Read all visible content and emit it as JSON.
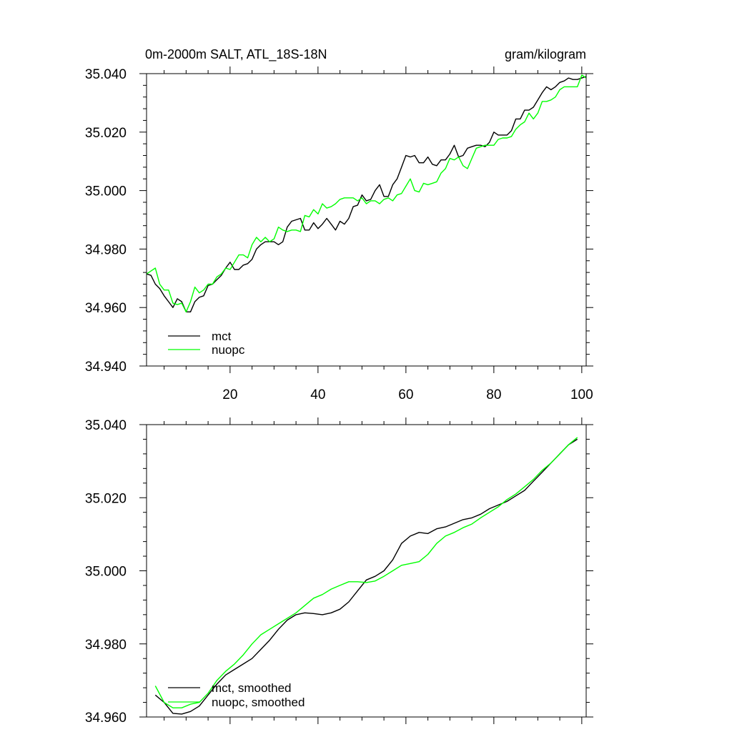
{
  "chart_data": [
    {
      "type": "line",
      "title_left": "0m-2000m SALT, ATL_18S-18N",
      "title_right": "gram/kilogram",
      "xlim": [
        1,
        101
      ],
      "ylim": [
        34.94,
        35.04
      ],
      "xticks": [
        20,
        40,
        60,
        80,
        100
      ],
      "xtick_labels": [
        "20",
        "40",
        "60",
        "80",
        "100"
      ],
      "yticks": [
        34.94,
        34.96,
        34.98,
        35.0,
        35.02,
        35.04
      ],
      "ytick_labels": [
        "34.940",
        "34.960",
        "34.980",
        "35.000",
        "35.020",
        "35.040"
      ],
      "legend_position": "bottom-left",
      "series": [
        {
          "name": "mct",
          "color": "#000000",
          "x": [
            1,
            2,
            3,
            4,
            5,
            6,
            7,
            8,
            9,
            10,
            11,
            12,
            13,
            14,
            15,
            16,
            17,
            18,
            19,
            20,
            21,
            22,
            23,
            24,
            25,
            26,
            27,
            28,
            29,
            30,
            31,
            32,
            33,
            34,
            35,
            36,
            37,
            38,
            39,
            40,
            41,
            42,
            43,
            44,
            45,
            46,
            47,
            48,
            49,
            50,
            51,
            52,
            53,
            54,
            55,
            56,
            57,
            58,
            59,
            60,
            61,
            62,
            63,
            64,
            65,
            66,
            67,
            68,
            69,
            70,
            71,
            72,
            73,
            74,
            75,
            76,
            77,
            78,
            79,
            80,
            81,
            82,
            83,
            84,
            85,
            86,
            87,
            88,
            89,
            90,
            91,
            92,
            93,
            94,
            95,
            96,
            97,
            98,
            99,
            100,
            101
          ],
          "values": [
            34.9715,
            34.971,
            34.968,
            34.9665,
            34.964,
            34.962,
            34.96,
            34.963,
            34.962,
            34.9585,
            34.9585,
            34.962,
            34.9635,
            34.964,
            34.9675,
            34.968,
            34.9695,
            34.971,
            34.9735,
            34.9755,
            34.973,
            34.973,
            34.9745,
            34.975,
            34.9765,
            34.98,
            34.9815,
            34.9825,
            34.9825,
            34.9825,
            34.9815,
            34.9825,
            34.9875,
            34.9895,
            34.99,
            34.9905,
            34.9865,
            34.9865,
            34.989,
            34.987,
            34.9885,
            34.9905,
            34.9885,
            34.9865,
            34.9895,
            34.9885,
            34.9905,
            34.9945,
            34.995,
            34.9985,
            34.9965,
            34.997,
            35.0,
            35.002,
            34.998,
            34.998,
            35.002,
            35.004,
            35.008,
            35.012,
            35.0115,
            35.012,
            35.0095,
            35.0095,
            35.0115,
            35.009,
            35.0085,
            35.0105,
            35.0105,
            35.0125,
            35.0155,
            35.0115,
            35.012,
            35.0145,
            35.015,
            35.0155,
            35.0155,
            35.015,
            35.0165,
            35.02,
            35.019,
            35.019,
            35.019,
            35.0205,
            35.0245,
            35.0245,
            35.0275,
            35.0275,
            35.0285,
            35.031,
            35.0335,
            35.0355,
            35.0345,
            35.0355,
            35.037,
            35.0375,
            35.0385,
            35.038,
            35.038,
            35.0385,
            35.039
          ]
        },
        {
          "name": "nuopc",
          "color": "#00ff00",
          "x": [
            1,
            2,
            3,
            4,
            5,
            6,
            7,
            8,
            9,
            10,
            11,
            12,
            13,
            14,
            15,
            16,
            17,
            18,
            19,
            20,
            21,
            22,
            23,
            24,
            25,
            26,
            27,
            28,
            29,
            30,
            31,
            32,
            33,
            34,
            35,
            36,
            37,
            38,
            39,
            40,
            41,
            42,
            43,
            44,
            45,
            46,
            47,
            48,
            49,
            50,
            51,
            52,
            53,
            54,
            55,
            56,
            57,
            58,
            59,
            60,
            61,
            62,
            63,
            64,
            65,
            66,
            67,
            68,
            69,
            70,
            71,
            72,
            73,
            74,
            75,
            76,
            77,
            78,
            79,
            80,
            81,
            82,
            83,
            84,
            85,
            86,
            87,
            88,
            89,
            90,
            91,
            92,
            93,
            94,
            95,
            96,
            97,
            98,
            99,
            100,
            101
          ],
          "values": [
            34.9715,
            34.9725,
            34.9735,
            34.968,
            34.966,
            34.966,
            34.9615,
            34.961,
            34.9615,
            34.9585,
            34.962,
            34.967,
            34.965,
            34.966,
            34.968,
            34.968,
            34.9705,
            34.9715,
            34.9735,
            34.973,
            34.9755,
            34.978,
            34.978,
            34.977,
            34.9815,
            34.984,
            34.9825,
            34.984,
            34.9825,
            34.9835,
            34.9875,
            34.9865,
            34.986,
            34.9865,
            34.9865,
            34.986,
            34.9915,
            34.991,
            34.9935,
            34.992,
            34.9955,
            34.994,
            34.9945,
            34.9955,
            34.997,
            34.9975,
            34.9975,
            34.9975,
            34.9965,
            34.9975,
            34.9955,
            34.9965,
            34.9965,
            34.9955,
            34.997,
            34.9975,
            34.9965,
            34.9985,
            34.999,
            35.0015,
            35.004,
            35.0,
            34.9995,
            35.0025,
            35.002,
            35.0025,
            35.003,
            35.006,
            35.0075,
            35.011,
            35.0105,
            35.0115,
            35.0085,
            35.0075,
            35.011,
            35.0145,
            35.015,
            35.0155,
            35.0155,
            35.0155,
            35.0175,
            35.018,
            35.018,
            35.0185,
            35.021,
            35.0225,
            35.0235,
            35.0265,
            35.0245,
            35.0265,
            35.0305,
            35.0305,
            35.031,
            35.032,
            35.0345,
            35.0355,
            35.0355,
            35.0355,
            35.0355,
            35.0395,
            35.0385
          ]
        }
      ]
    },
    {
      "type": "line",
      "xlim": [
        1,
        101
      ],
      "ylim": [
        34.96,
        35.04
      ],
      "xticks": [
        20,
        40,
        60,
        80,
        100
      ],
      "yticks": [
        34.96,
        34.98,
        35.0,
        35.02,
        35.04
      ],
      "ytick_labels": [
        "34.960",
        "34.980",
        "35.000",
        "35.020",
        "35.040"
      ],
      "legend_position": "bottom-left",
      "series": [
        {
          "name": "mct, smoothed",
          "color": "#000000",
          "x": [
            3,
            5,
            7,
            9,
            11,
            13,
            15,
            17,
            19,
            21,
            23,
            25,
            27,
            29,
            31,
            33,
            35,
            37,
            39,
            41,
            43,
            45,
            47,
            49,
            51,
            53,
            55,
            57,
            59,
            61,
            63,
            65,
            67,
            69,
            71,
            73,
            75,
            77,
            79,
            81,
            83,
            85,
            87,
            89,
            91,
            93,
            95,
            97,
            99
          ],
          "values": [
            34.966,
            34.964,
            34.961,
            34.9608,
            34.9615,
            34.963,
            34.966,
            34.969,
            34.9715,
            34.973,
            34.9745,
            34.976,
            34.9785,
            34.981,
            34.984,
            34.9865,
            34.988,
            34.9885,
            34.9883,
            34.988,
            34.9885,
            34.9895,
            34.9915,
            34.9945,
            34.9975,
            34.9985,
            35.0,
            35.003,
            35.0075,
            35.0095,
            35.0105,
            35.0102,
            35.0115,
            35.012,
            35.013,
            35.014,
            35.0145,
            35.0155,
            35.017,
            35.018,
            35.019,
            35.0205,
            35.022,
            35.0245,
            35.027,
            35.0295,
            35.032,
            35.0345,
            35.036
          ]
        },
        {
          "name": "nuopc, smoothed",
          "color": "#00ff00",
          "x": [
            3,
            5,
            7,
            9,
            11,
            13,
            15,
            17,
            19,
            21,
            23,
            25,
            27,
            29,
            31,
            33,
            35,
            37,
            39,
            41,
            43,
            45,
            47,
            49,
            51,
            53,
            55,
            57,
            59,
            61,
            63,
            65,
            67,
            69,
            71,
            73,
            75,
            77,
            79,
            81,
            83,
            85,
            87,
            89,
            91,
            93,
            95,
            97,
            99
          ],
          "values": [
            34.9685,
            34.964,
            34.9625,
            34.9625,
            34.9635,
            34.964,
            34.9665,
            34.97,
            34.9725,
            34.9745,
            34.977,
            34.98,
            34.9825,
            34.984,
            34.9855,
            34.987,
            34.9885,
            34.9905,
            34.9925,
            34.9935,
            34.995,
            34.996,
            34.997,
            34.997,
            34.9968,
            34.9972,
            34.9985,
            35.0,
            35.0015,
            35.002,
            35.0025,
            35.0045,
            35.0075,
            35.0095,
            35.0105,
            35.0118,
            35.0128,
            35.0145,
            35.016,
            35.0175,
            35.0195,
            35.021,
            35.023,
            35.025,
            35.0275,
            35.0295,
            35.032,
            35.0345,
            35.0365
          ]
        }
      ]
    }
  ]
}
